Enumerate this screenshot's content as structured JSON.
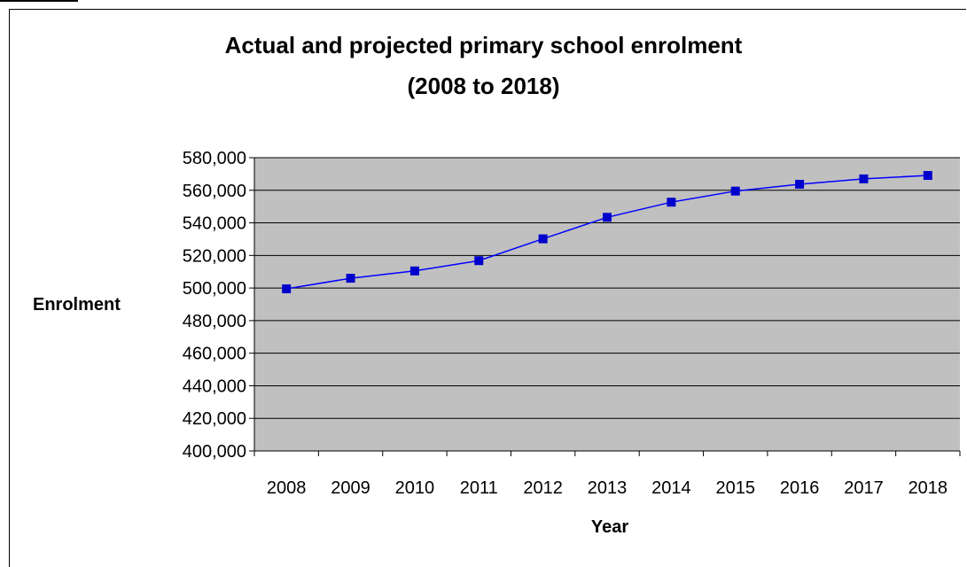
{
  "chart_data": {
    "type": "line",
    "title_line1": "Actual and projected primary school enrolment",
    "title_line2": "(2008 to 2018)",
    "xlabel": "Year",
    "ylabel": "Enrolment",
    "categories": [
      "2008",
      "2009",
      "2010",
      "2011",
      "2012",
      "2013",
      "2014",
      "2015",
      "2016",
      "2017",
      "2018"
    ],
    "series": [
      {
        "values": [
          499500,
          506000,
          510500,
          516800,
          530200,
          543400,
          552700,
          559500,
          563700,
          567000,
          569100
        ]
      }
    ],
    "ylim": [
      400000,
      580000
    ],
    "yticks": [
      400000,
      420000,
      440000,
      460000,
      480000,
      500000,
      520000,
      540000,
      560000,
      580000
    ],
    "ytick_labels": [
      "400,000",
      "420,000",
      "440,000",
      "460,000",
      "480,000",
      "500,000",
      "520,000",
      "540,000",
      "560,000",
      "580,000"
    ],
    "grid": true,
    "legend": "none",
    "colors": {
      "plot_bg": "#c0c0c0",
      "line": "#0000ff",
      "marker": "#0000cc",
      "grid": "#000000"
    }
  }
}
